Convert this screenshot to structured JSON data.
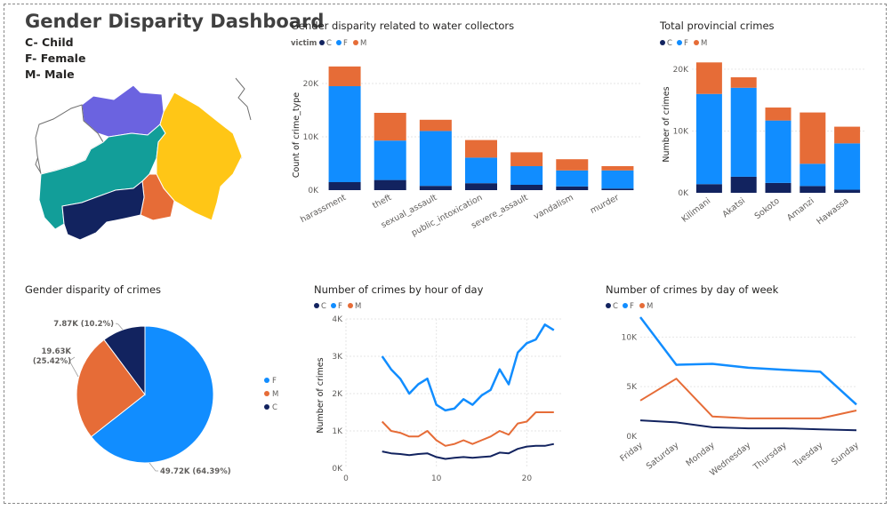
{
  "dashboard": {
    "title": "Gender Disparity Dashboard",
    "legend_keys": [
      "C- Child",
      "F- Female",
      "M- Male"
    ]
  },
  "colors": {
    "C": "#12235f",
    "F": "#118dff",
    "M": "#e66c37"
  },
  "map": {
    "regions": [
      {
        "name": "region-purple",
        "color": "#6b63e0"
      },
      {
        "name": "region-white",
        "color": "#ffffff"
      },
      {
        "name": "region-teal",
        "color": "#129e99"
      },
      {
        "name": "region-yellow",
        "color": "#ffc616"
      },
      {
        "name": "region-orange",
        "color": "#e66c37"
      },
      {
        "name": "region-navy",
        "color": "#12235f"
      }
    ]
  },
  "chart_data": [
    {
      "id": "water",
      "type": "bar",
      "stacked": true,
      "title": "Gender disparity related to water collectors",
      "legend_title": "victim",
      "legend": [
        "C",
        "F",
        "M"
      ],
      "legend_placement": "top-left",
      "ylabel": "Count of crime_type",
      "xlabel": "",
      "categories": [
        "harassment",
        "theft",
        "sexual_assault",
        "public_intoxication",
        "severe_assault",
        "vandalism",
        "murder"
      ],
      "series": [
        {
          "name": "C",
          "values": [
            1500,
            1900,
            800,
            1300,
            1000,
            700,
            300
          ]
        },
        {
          "name": "F",
          "values": [
            18000,
            7400,
            10300,
            4800,
            3500,
            3000,
            3400
          ]
        },
        {
          "name": "M",
          "values": [
            3700,
            5200,
            2100,
            3300,
            2600,
            2100,
            800
          ]
        }
      ],
      "ylim": [
        0,
        25000
      ],
      "yticks": [
        0,
        10000,
        20000
      ],
      "ytick_labels": [
        "0K",
        "10K",
        "20K"
      ],
      "grid": true
    },
    {
      "id": "prov",
      "type": "bar",
      "stacked": true,
      "title": "Total provincial crimes",
      "legend": [
        "C",
        "F",
        "M"
      ],
      "legend_placement": "top-left",
      "ylabel": "Number of crimes",
      "xlabel": "",
      "categories": [
        "Kilimani",
        "Akatsi",
        "Sokoto",
        "Amanzi",
        "Hawassa"
      ],
      "series": [
        {
          "name": "C",
          "values": [
            1400,
            2600,
            1600,
            1100,
            500
          ]
        },
        {
          "name": "F",
          "values": [
            14600,
            14400,
            10100,
            3600,
            7500
          ]
        },
        {
          "name": "M",
          "values": [
            5100,
            1700,
            2100,
            8300,
            2700
          ]
        }
      ],
      "ylim": [
        0,
        22000
      ],
      "yticks": [
        0,
        10000,
        20000
      ],
      "ytick_labels": [
        "0K",
        "10K",
        "20K"
      ],
      "grid": true
    },
    {
      "id": "pie",
      "type": "pie",
      "title": "Gender disparity of crimes",
      "slices": [
        {
          "name": "F",
          "value": 49720,
          "label": "49.72K (64.39%)"
        },
        {
          "name": "M",
          "value": 19630,
          "label": "19.63K (25.42%)"
        },
        {
          "name": "C",
          "value": 7870,
          "label": "7.87K (10.2%)"
        }
      ],
      "legend": [
        "F",
        "M",
        "C"
      ],
      "legend_placement": "right"
    },
    {
      "id": "hour",
      "type": "line",
      "title": "Number of crimes by hour of day",
      "legend": [
        "C",
        "F",
        "M"
      ],
      "legend_placement": "top-left",
      "ylabel": "Number of crimes",
      "xlabel": "",
      "x": [
        4,
        5,
        6,
        7,
        8,
        9,
        10,
        11,
        12,
        13,
        14,
        15,
        16,
        17,
        18,
        19,
        20,
        21,
        22,
        23
      ],
      "series": [
        {
          "name": "F",
          "values": [
            3000,
            2650,
            2400,
            2000,
            2250,
            2400,
            1700,
            1550,
            1600,
            1850,
            1700,
            1950,
            2100,
            2650,
            2250,
            3100,
            3350,
            3450,
            3850,
            3700
          ]
        },
        {
          "name": "M",
          "values": [
            1250,
            1000,
            950,
            850,
            850,
            1000,
            750,
            600,
            650,
            750,
            650,
            750,
            850,
            1000,
            900,
            1200,
            1250,
            1500,
            1500,
            1500
          ]
        },
        {
          "name": "C",
          "values": [
            450,
            400,
            380,
            350,
            380,
            400,
            300,
            250,
            280,
            300,
            280,
            300,
            320,
            420,
            400,
            520,
            580,
            600,
            600,
            650
          ]
        }
      ],
      "xlim": [
        0,
        24
      ],
      "xticks": [
        0,
        10,
        20
      ],
      "ylim": [
        0,
        4000
      ],
      "yticks": [
        0,
        1000,
        2000,
        3000,
        4000
      ],
      "ytick_labels": [
        "0K",
        "1K",
        "2K",
        "3K",
        "4K"
      ],
      "grid": true
    },
    {
      "id": "dow",
      "type": "line",
      "title": "Number of crimes by day of week",
      "legend": [
        "C",
        "F",
        "M"
      ],
      "legend_placement": "top-left",
      "ylabel": "",
      "xlabel": "",
      "categories": [
        "Friday",
        "Saturday",
        "Monday",
        "Wednesday",
        "Thursday",
        "Tuesday",
        "Sunday"
      ],
      "series": [
        {
          "name": "F",
          "values": [
            12000,
            7200,
            7300,
            6900,
            6700,
            6500,
            3200
          ]
        },
        {
          "name": "M",
          "values": [
            3600,
            5800,
            2000,
            1800,
            1800,
            1800,
            2600
          ]
        },
        {
          "name": "C",
          "values": [
            1600,
            1400,
            900,
            800,
            800,
            700,
            600
          ]
        }
      ],
      "ylim": [
        0,
        12000
      ],
      "yticks": [
        0,
        5000,
        10000
      ],
      "ytick_labels": [
        "0K",
        "5K",
        "10K"
      ],
      "grid": true
    }
  ]
}
